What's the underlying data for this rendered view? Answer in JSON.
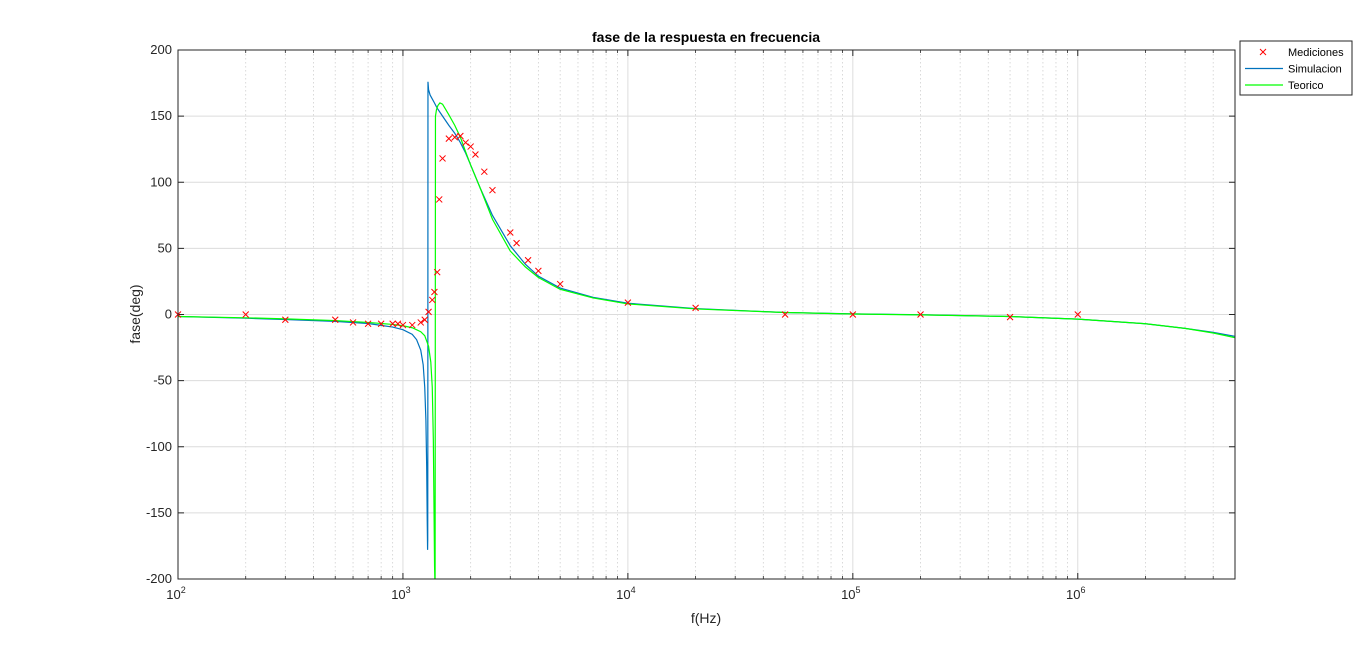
{
  "chart_data": {
    "type": "line",
    "title": "fase de la respuesta en frecuencia",
    "xlabel": "f(Hz)",
    "ylabel": "fase(deg)",
    "xscale": "log",
    "xlim": [
      100,
      5000000
    ],
    "ylim": [
      -200,
      200
    ],
    "yticks": [
      -200,
      -150,
      -100,
      -50,
      0,
      50,
      100,
      150,
      200
    ],
    "xticks": [
      {
        "value": 100,
        "base": "10",
        "exp": "2"
      },
      {
        "value": 1000,
        "base": "10",
        "exp": "3"
      },
      {
        "value": 10000,
        "base": "10",
        "exp": "4"
      },
      {
        "value": 100000,
        "base": "10",
        "exp": "5"
      },
      {
        "value": 1000000,
        "base": "10",
        "exp": "6"
      }
    ],
    "grid": true,
    "legend_position": "outside top-right",
    "series": [
      {
        "name": "Mediciones",
        "style": "marker-x",
        "color": "#ff0000",
        "x": [
          100,
          200,
          300,
          500,
          600,
          700,
          800,
          900,
          950,
          1000,
          1100,
          1200,
          1250,
          1300,
          1350,
          1380,
          1420,
          1450,
          1500,
          1600,
          1700,
          1800,
          1900,
          2000,
          2100,
          2300,
          2500,
          3000,
          3200,
          3600,
          4000,
          5000,
          10000,
          20000,
          50000,
          100000,
          200000,
          500000,
          1000000
        ],
        "y": [
          0,
          0,
          -4,
          -4,
          -6,
          -7,
          -7,
          -7,
          -7,
          -8,
          -8,
          -6,
          -4,
          2,
          11,
          17,
          32,
          87,
          118,
          133,
          134,
          135,
          130,
          127,
          121,
          108,
          94,
          62,
          54,
          41,
          33,
          23,
          9,
          5,
          0,
          0,
          0,
          -2,
          0
        ]
      },
      {
        "name": "Simulacion",
        "style": "line",
        "color": "#0072bd",
        "x": [
          100,
          200,
          300,
          500,
          700,
          900,
          1000,
          1100,
          1150,
          1200,
          1230,
          1250,
          1265,
          1275,
          1282,
          1287,
          1289,
          1290,
          1292,
          1300,
          1320,
          1350,
          1380,
          1420,
          1500,
          1600,
          1700,
          1800,
          1900,
          2000,
          2200,
          2500,
          3000,
          3500,
          4000,
          5000,
          7000,
          10000,
          20000,
          50000,
          100000,
          200000,
          500000,
          1000000,
          2000000,
          3000000,
          4000000,
          5000000
        ],
        "y": [
          -1.5,
          -2.8,
          -3.8,
          -5.2,
          -6.8,
          -9.5,
          -11.5,
          -15,
          -19,
          -27,
          -38,
          -55,
          -80,
          -115,
          -155,
          -178,
          -170,
          -100,
          176,
          170,
          166,
          163,
          160,
          156,
          150,
          143,
          137,
          130,
          122,
          113,
          96,
          75,
          52,
          38,
          29,
          20,
          13,
          8.5,
          4.5,
          1.5,
          0.5,
          -0.2,
          -1.5,
          -3.5,
          -7,
          -10.5,
          -13.5,
          -16.5
        ]
      },
      {
        "name": "Teorico",
        "style": "line",
        "color": "#00ff00",
        "x": [
          100,
          200,
          300,
          500,
          700,
          900,
          1000,
          1100,
          1200,
          1250,
          1300,
          1330,
          1350,
          1365,
          1375,
          1382,
          1386,
          1388,
          1389,
          1390,
          1395,
          1410,
          1430,
          1460,
          1500,
          1550,
          1600,
          1700,
          1800,
          1900,
          2000,
          2200,
          2500,
          3000,
          3500,
          4000,
          5000,
          7000,
          10000,
          20000,
          50000,
          100000,
          200000,
          500000,
          1000000,
          2000000,
          3000000,
          4000000,
          5000000
        ],
        "y": [
          -1.5,
          -2.5,
          -3.3,
          -4.6,
          -6,
          -7.5,
          -8.5,
          -10,
          -13,
          -16,
          -24,
          -36,
          -55,
          -95,
          -150,
          -190,
          -200,
          -200,
          -198,
          -200,
          150,
          155,
          158,
          160,
          159,
          155,
          151,
          143,
          134,
          123,
          113,
          96,
          72,
          48,
          36,
          28,
          19,
          12.5,
          8,
          4.2,
          1.5,
          0.4,
          -0.3,
          -1.5,
          -3.5,
          -7,
          -10.5,
          -14,
          -17.5
        ]
      }
    ]
  }
}
